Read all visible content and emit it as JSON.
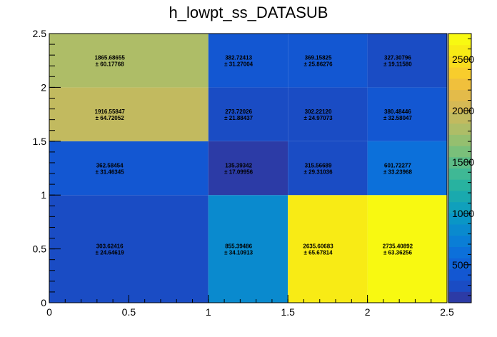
{
  "chart_data": {
    "type": "heatmap",
    "title": "h_lowpt_ss_DATASUB",
    "xlabel": "",
    "ylabel": "",
    "x_edges": [
      0,
      1,
      1.5,
      2,
      2.5
    ],
    "y_edges": [
      0,
      1,
      1.5,
      2,
      2.5
    ],
    "xlim": [
      0,
      2.5
    ],
    "ylim": [
      0,
      2.5
    ],
    "x_ticks": [
      "0",
      "0.5",
      "1",
      "1.5",
      "2",
      "2.5"
    ],
    "y_ticks": [
      "0",
      "0.5",
      "1",
      "1.5",
      "2",
      "2.5"
    ],
    "colorbar_ticks": [
      "500",
      "1000",
      "1500",
      "2000",
      "2500"
    ],
    "colorbar_range": [
      130,
      2750
    ],
    "grid": false,
    "cells": [
      {
        "row": 0,
        "col": 0,
        "value": 303.62416,
        "error": 24.64619,
        "value_label": "303.62416",
        "error_label": "± 24.64619"
      },
      {
        "row": 0,
        "col": 1,
        "value": 855.39486,
        "error": 34.10913,
        "value_label": "855.39486",
        "error_label": "± 34.10913"
      },
      {
        "row": 0,
        "col": 2,
        "value": 2635.60683,
        "error": 65.67814,
        "value_label": "2635.60683",
        "error_label": "± 65.67814"
      },
      {
        "row": 0,
        "col": 3,
        "value": 2735.40892,
        "error": 63.36256,
        "value_label": "2735.40892",
        "error_label": "± 63.36256"
      },
      {
        "row": 1,
        "col": 0,
        "value": 362.58454,
        "error": 31.46345,
        "value_label": "362.58454",
        "error_label": "± 31.46345"
      },
      {
        "row": 1,
        "col": 1,
        "value": 135.39342,
        "error": 17.09956,
        "value_label": "135.39342",
        "error_label": "± 17.09956"
      },
      {
        "row": 1,
        "col": 2,
        "value": 315.56689,
        "error": 29.31036,
        "value_label": "315.56689",
        "error_label": "± 29.31036"
      },
      {
        "row": 1,
        "col": 3,
        "value": 601.72277,
        "error": 33.23968,
        "value_label": "601.72277",
        "error_label": "± 33.23968"
      },
      {
        "row": 2,
        "col": 0,
        "value": 1916.55847,
        "error": 64.72052,
        "value_label": "1916.55847",
        "error_label": "± 64.72052"
      },
      {
        "row": 2,
        "col": 1,
        "value": 273.72026,
        "error": 21.88437,
        "value_label": "273.72026",
        "error_label": "± 21.88437"
      },
      {
        "row": 2,
        "col": 2,
        "value": 302.2212,
        "error": 24.97073,
        "value_label": "302.22120",
        "error_label": "± 24.97073"
      },
      {
        "row": 2,
        "col": 3,
        "value": 380.48446,
        "error": 32.58047,
        "value_label": "380.48446",
        "error_label": "± 32.58047"
      },
      {
        "row": 3,
        "col": 0,
        "value": 1865.68655,
        "error": 60.17768,
        "value_label": "1865.68655",
        "error_label": "± 60.17768"
      },
      {
        "row": 3,
        "col": 1,
        "value": 382.72413,
        "error": 31.27004,
        "value_label": "382.72413",
        "error_label": "± 31.27004"
      },
      {
        "row": 3,
        "col": 2,
        "value": 369.15825,
        "error": 25.86276,
        "value_label": "369.15825",
        "error_label": "± 25.86276"
      },
      {
        "row": 3,
        "col": 3,
        "value": 327.30796,
        "error": 19.1158,
        "value_label": "327.30796",
        "error_label": "± 19.11580"
      }
    ],
    "palette": [
      "#2c3ba6",
      "#1a4cc4",
      "#1357d2",
      "#0f63d8",
      "#0c70da",
      "#0a7ed6",
      "#0a8ace",
      "#0a96c6",
      "#10a0bc",
      "#1aa9ae",
      "#28b2a0",
      "#3fb895",
      "#5cbc87",
      "#7abf7a",
      "#95bf6f",
      "#aebd67",
      "#c2ba5f",
      "#d5b955",
      "#e3bb4a",
      "#f0c03c",
      "#f8cd2c",
      "#f9dc1e",
      "#f8eb15",
      "#f8f911"
    ]
  }
}
